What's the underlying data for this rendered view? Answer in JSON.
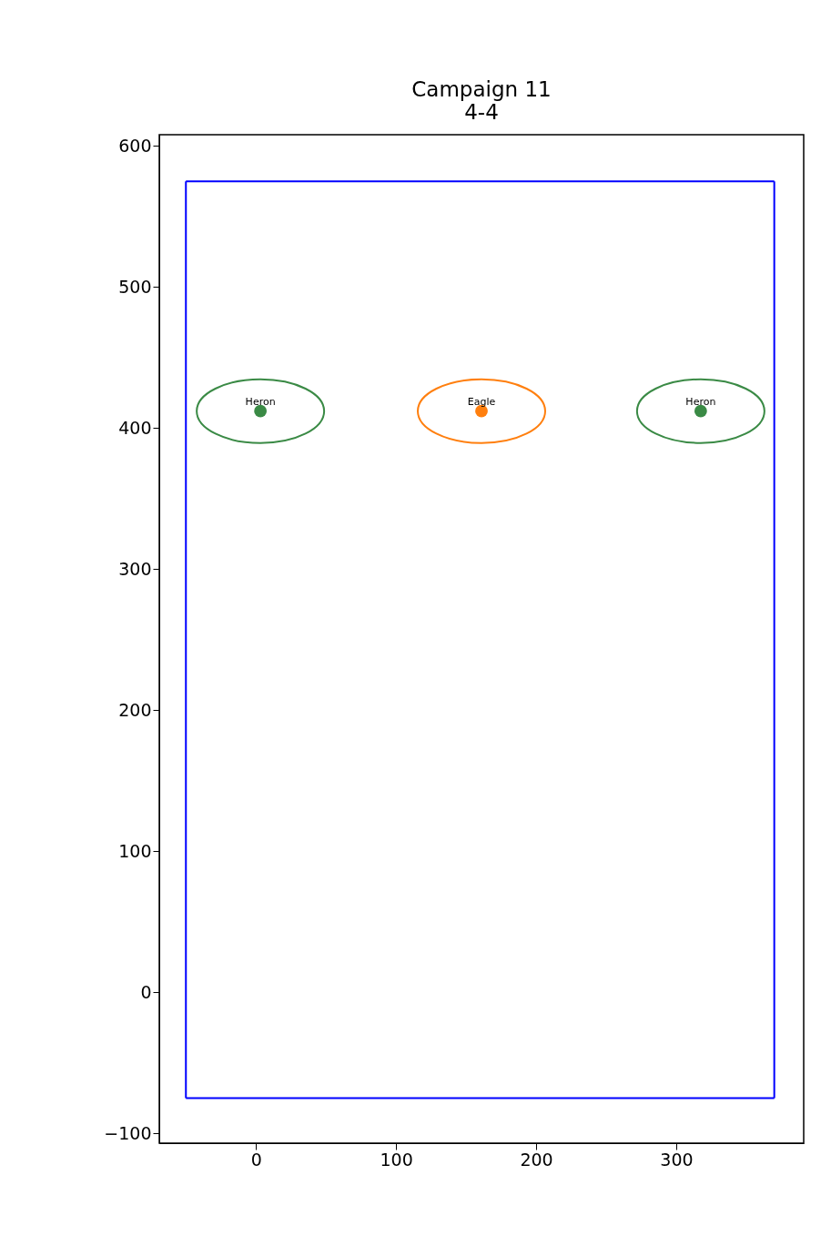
{
  "chart_data": {
    "type": "scatter",
    "title": "Campaign 11",
    "subtitle": "4-4",
    "xlim": [
      -69,
      391
    ],
    "ylim": [
      -107,
      608
    ],
    "xticks": [
      0,
      100,
      200,
      300
    ],
    "yticks": [
      -100,
      0,
      100,
      200,
      300,
      400,
      500,
      600
    ],
    "grid": false,
    "marker": "circle",
    "series": [
      {
        "name": "Heron",
        "color": "#3a8a45",
        "x": [
          3.2,
          317.5
        ],
        "values": [
          412,
          412
        ]
      },
      {
        "name": "Eagle",
        "color": "#ff7f0e",
        "x": [
          161
        ],
        "values": [
          412
        ]
      },
      {
        "type": "line",
        "marker": "none",
        "color": "#0000ff",
        "x": [
          -50,
          370
        ],
        "values": [
          -75,
          -75
        ]
      },
      {
        "type": "line",
        "marker": "none",
        "color": "#0000ff",
        "x": [
          -50,
          370
        ],
        "values": [
          575,
          575
        ]
      },
      {
        "type": "line",
        "marker": "none",
        "color": "#0000ff",
        "x": [
          -50,
          -50
        ],
        "values": [
          -75,
          575
        ]
      },
      {
        "type": "line",
        "marker": "none",
        "color": "#0000ff",
        "x": [
          370,
          370
        ],
        "values": [
          -75,
          575
        ]
      }
    ]
  }
}
